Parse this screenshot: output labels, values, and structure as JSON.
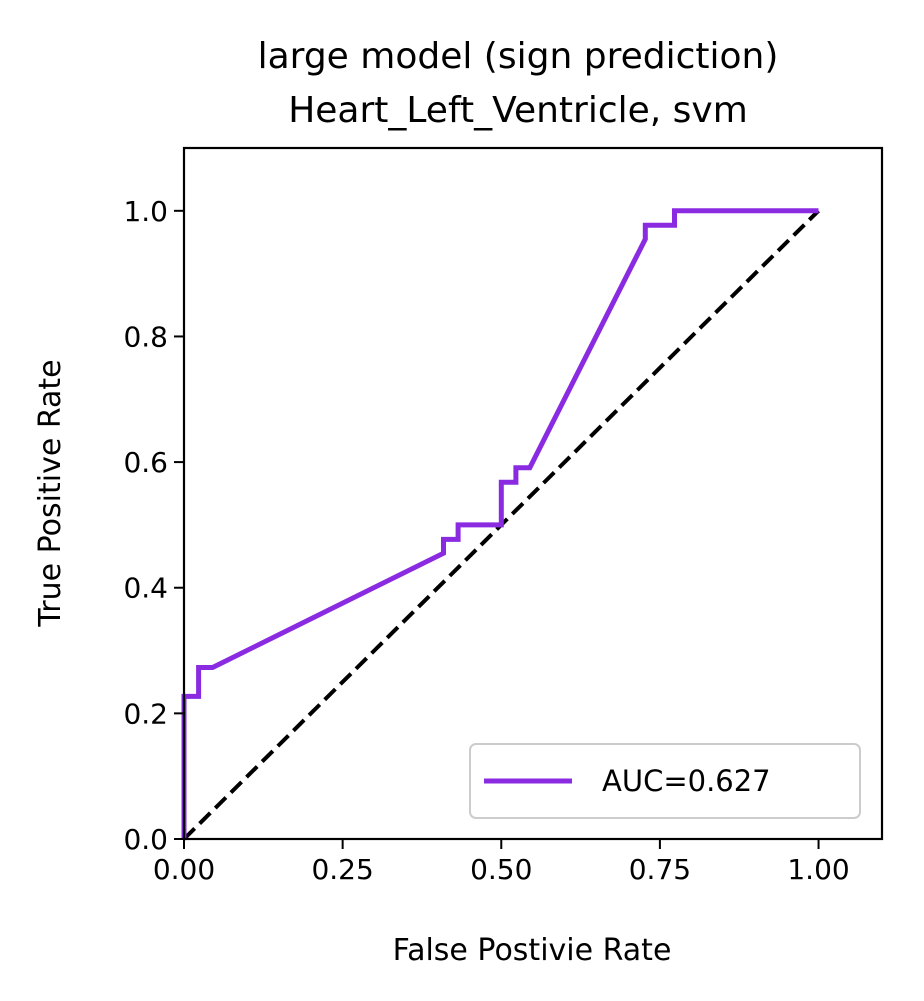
{
  "chart_data": {
    "type": "line",
    "title": [
      "large model (sign prediction)",
      "Heart_Left_Ventricle, svm"
    ],
    "xlabel": "False Postivie Rate",
    "ylabel": "True Positive Rate",
    "xlim": [
      0.0,
      1.1
    ],
    "ylim": [
      0.0,
      1.1
    ],
    "xticks": [
      0.0,
      0.25,
      0.5,
      0.75,
      1.0
    ],
    "xtick_labels": [
      "0.00",
      "0.25",
      "0.50",
      "0.75",
      "1.00"
    ],
    "yticks": [
      0.0,
      0.2,
      0.4,
      0.6,
      0.8,
      1.0
    ],
    "ytick_labels": [
      "0.0",
      "0.2",
      "0.4",
      "0.6",
      "0.8",
      "1.0"
    ],
    "grid": false,
    "legend_position": "lower-right",
    "series": [
      {
        "name": "AUC=0.627",
        "color": "#8a2be2",
        "style": "solid",
        "x": [
          0.0,
          0.0,
          0.023,
          0.023,
          0.045,
          0.409,
          0.409,
          0.432,
          0.432,
          0.5,
          0.5,
          0.523,
          0.523,
          0.545,
          0.727,
          0.727,
          0.773,
          0.773,
          1.0
        ],
        "y": [
          0.0,
          0.227,
          0.227,
          0.273,
          0.273,
          0.455,
          0.477,
          0.477,
          0.5,
          0.5,
          0.568,
          0.568,
          0.591,
          0.591,
          0.955,
          0.977,
          0.977,
          1.0,
          1.0
        ]
      },
      {
        "name": "",
        "color": "#000000",
        "style": "dashed",
        "x": [
          0.0,
          1.0
        ],
        "y": [
          0.0,
          1.0
        ]
      }
    ]
  }
}
